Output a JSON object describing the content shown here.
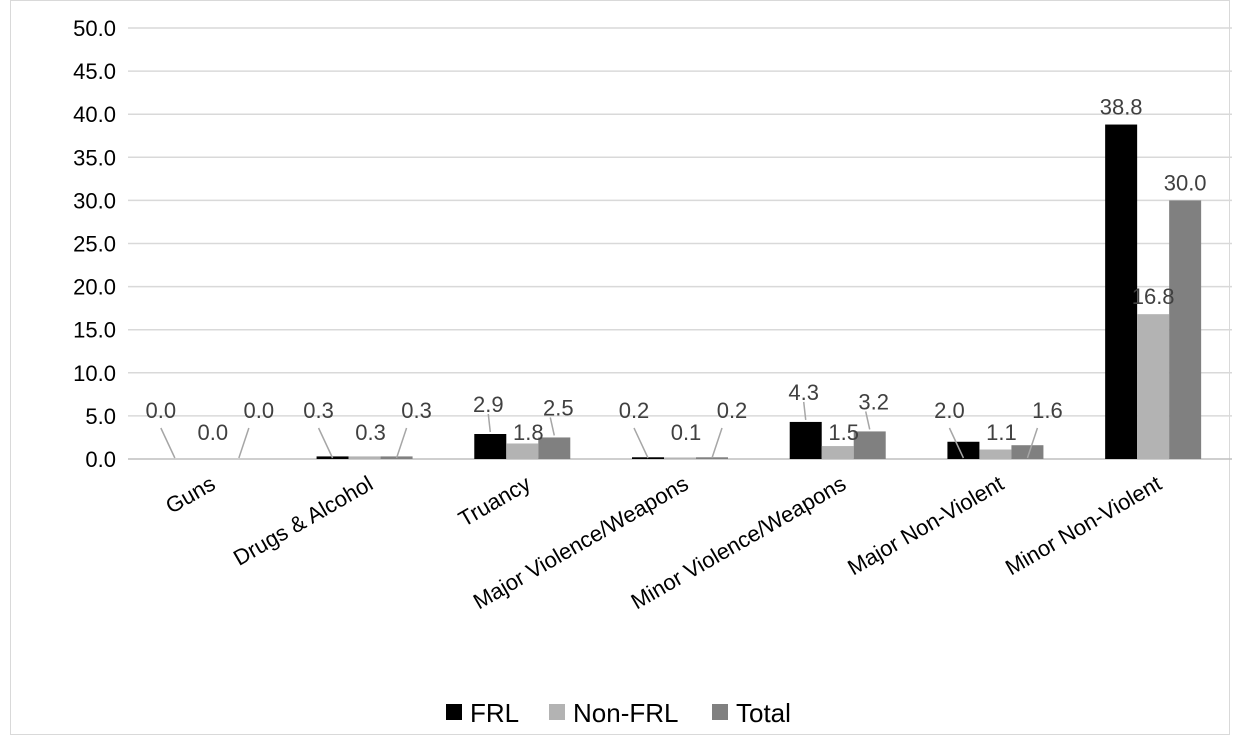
{
  "chart_data": {
    "type": "bar",
    "title": "",
    "xlabel": "",
    "ylabel": "",
    "ylim": [
      0,
      50
    ],
    "yticks": [
      "0.0",
      "5.0",
      "10.0",
      "15.0",
      "20.0",
      "25.0",
      "30.0",
      "35.0",
      "40.0",
      "45.0",
      "50.0"
    ],
    "grid": true,
    "legend_position": "bottom",
    "categories": [
      "Guns",
      "Drugs & Alcohol",
      "Truancy",
      "Major Violence/Weapons",
      "Minor Violence/Weapons",
      "Major Non-Violent",
      "Minor Non-Violent"
    ],
    "series": [
      {
        "name": "FRL",
        "color": "#000000",
        "values": [
          0.0,
          0.3,
          2.9,
          0.2,
          4.3,
          2.0,
          38.8
        ],
        "labels": [
          "0.0",
          "0.3",
          "2.9",
          "0.2",
          "4.3",
          "2.0",
          "38.8"
        ]
      },
      {
        "name": "Non-FRL",
        "color": "#b3b3b3",
        "values": [
          0.0,
          0.3,
          1.8,
          0.1,
          1.5,
          1.1,
          16.8
        ],
        "labels": [
          "0.0",
          "0.3",
          "1.8",
          "0.1",
          "1.5",
          "1.1",
          "16.8"
        ]
      },
      {
        "name": "Total",
        "color": "#808080",
        "values": [
          0.0,
          0.3,
          2.5,
          0.2,
          3.2,
          1.6,
          30.0
        ],
        "labels": [
          "0.0",
          "0.3",
          "2.5",
          "0.2",
          "3.2",
          "1.6",
          "30.0"
        ]
      }
    ]
  }
}
